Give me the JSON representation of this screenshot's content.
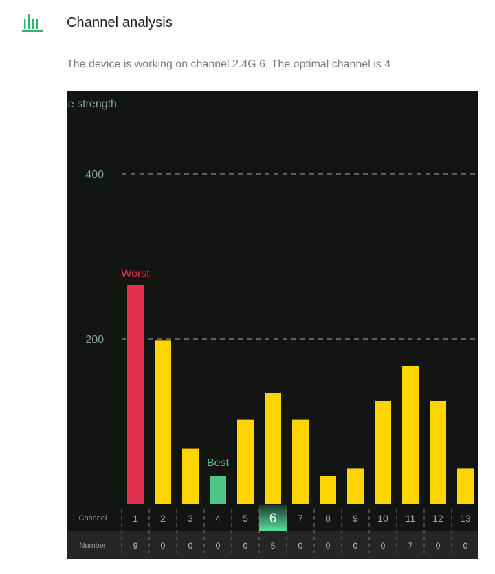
{
  "header": {
    "icon": "bar-chart-icon",
    "title": "Channel analysis",
    "subtitle": "The device is working on channel 2.4G 6, The optimal channel is 4"
  },
  "colors": {
    "accent": "#2bb673",
    "worst": "#e3304f",
    "best": "#4fc587",
    "normal": "#ffd500",
    "chart_bg": "#131512",
    "axis_text": "#7fa3a4"
  },
  "chart_data": {
    "type": "bar",
    "ylabel": "ence strength",
    "ylim": [
      0,
      500
    ],
    "yticks": [
      200,
      400
    ],
    "grid": true,
    "categories": [
      "1",
      "2",
      "3",
      "4",
      "5",
      "6",
      "7",
      "8",
      "9",
      "10",
      "11",
      "12",
      "13"
    ],
    "values": [
      265,
      198,
      67,
      34,
      102,
      135,
      102,
      34,
      43,
      125,
      167,
      125,
      43
    ],
    "numbers": [
      "9",
      "0",
      "0",
      "0",
      "0",
      "5",
      "0",
      "0",
      "0",
      "0",
      "7",
      "0",
      "0"
    ],
    "worst_index": 0,
    "best_index": 3,
    "current_index": 5,
    "worst_label": "Worst",
    "best_label": "Best",
    "row_labels": {
      "channel": "Channel",
      "number": "Number"
    }
  }
}
